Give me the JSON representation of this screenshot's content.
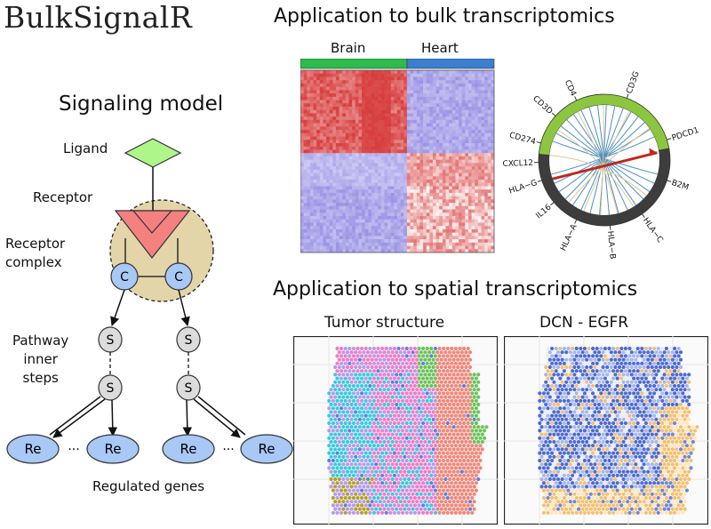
{
  "title": "BulkSignalR",
  "model": {
    "heading": "Signaling model",
    "ligand": "Ligand",
    "receptor": "Receptor",
    "receptor_complex": "Receptor\ncomplex",
    "pathway": "Pathway\ninner\nsteps",
    "regulated_genes": "Regulated genes",
    "node_c": "C",
    "node_s": "S",
    "node_re": "Re",
    "ellipsis": "···"
  },
  "bulk": {
    "heading": "Application to bulk transcriptomics",
    "groups": [
      "Brain",
      "Heart"
    ],
    "group_colors": [
      "#2dbb4e",
      "#3a7fd0"
    ],
    "chord_labels": [
      "CD4",
      "CD3G",
      "PDCD1",
      "B2M",
      "HLA−C",
      "HLA−B",
      "HLA−A",
      "IL16",
      "HLA−G",
      "CXCL12",
      "CD274",
      "CD3D"
    ]
  },
  "spatial": {
    "heading": "Application to spatial transcriptomics",
    "panel1_title": "Tumor structure",
    "panel2_title": "DCN - EGFR"
  },
  "colors": {
    "ligand": "#aef58a",
    "receptor": "#f58080",
    "complex_fill": "#e3d5a8",
    "node_c": "#a8c8f5",
    "node_s": "#dcdcdc",
    "node_re": "#a8c8f5"
  }
}
